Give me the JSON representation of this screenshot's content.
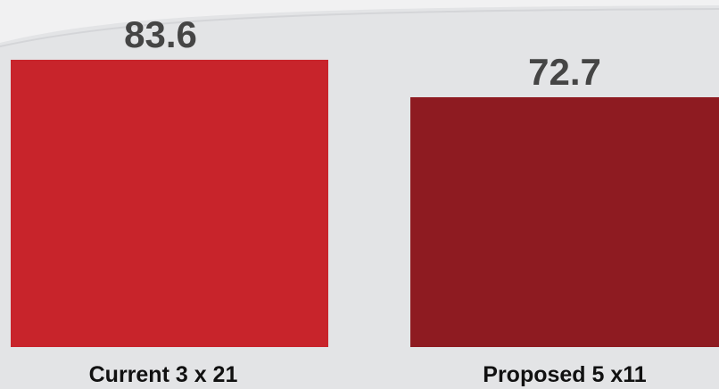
{
  "chart_data": {
    "type": "bar",
    "categories": [
      "Current 3 x 21",
      "Proposed 5 x11"
    ],
    "values": [
      83.6,
      72.7
    ],
    "value_labels": [
      "83.6",
      "72.7"
    ],
    "colors": [
      "#c8242b",
      "#8e1b21"
    ],
    "title": "",
    "xlabel": "",
    "ylabel": "",
    "ylim": [
      0,
      83.6
    ],
    "grid": false,
    "legend": "none"
  }
}
